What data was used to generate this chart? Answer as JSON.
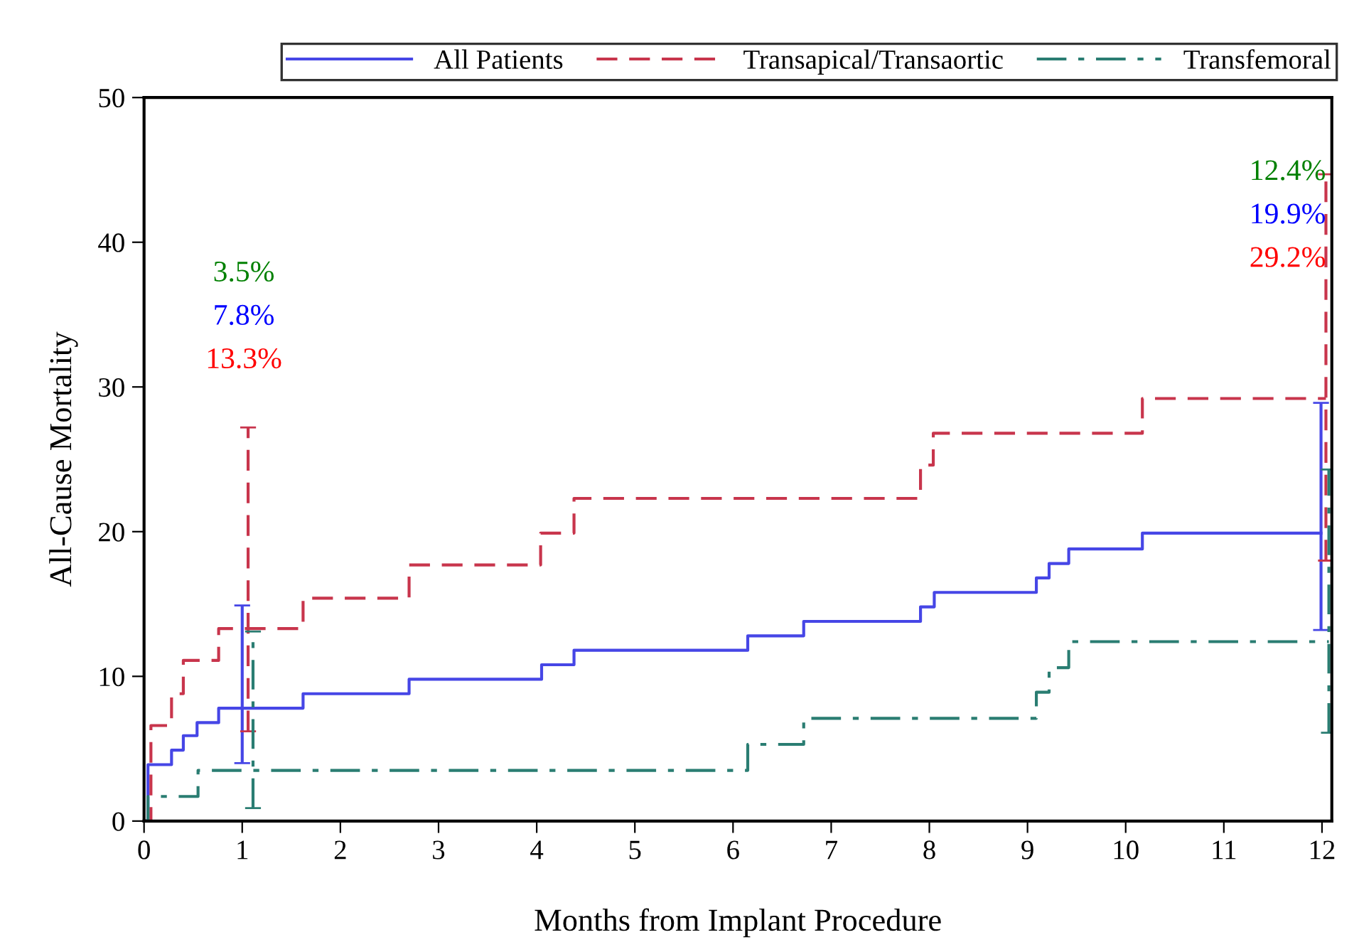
{
  "chart_data": {
    "type": "step",
    "xlabel": "Months from Implant Procedure",
    "ylabel": "All-Cause Mortality",
    "xlim": [
      0,
      12.1
    ],
    "xticks": [
      0,
      1,
      2,
      3,
      4,
      5,
      6,
      7,
      8,
      9,
      10,
      11,
      12
    ],
    "ylim": [
      0,
      50
    ],
    "yticks": [
      0,
      10,
      20,
      30,
      40,
      50
    ],
    "legend": "top",
    "grid": false,
    "annotations": [
      "3.5%",
      "7.8%",
      "13.3%",
      "12.4%",
      "19.9%",
      "29.2%"
    ],
    "series": [
      {
        "name": "All Patients",
        "color": "#4646e6",
        "line_style": "solid",
        "x": [
          0,
          0.04,
          0.28,
          0.4,
          0.54,
          0.76,
          1.0,
          1.62,
          2.7,
          4.05,
          4.38,
          6.15,
          6.72,
          7.91,
          8.05,
          9.09,
          9.22,
          9.42,
          10.17,
          11.99
        ],
        "values": [
          0,
          3.9,
          4.9,
          5.9,
          6.8,
          7.8,
          7.8,
          8.8,
          9.8,
          10.8,
          11.8,
          12.8,
          13.8,
          14.8,
          15.8,
          16.8,
          17.8,
          18.8,
          19.9,
          19.9
        ],
        "errors": [
          null,
          null,
          null,
          null,
          null,
          null,
          [
            4.0,
            14.9
          ],
          null,
          null,
          null,
          null,
          null,
          null,
          null,
          null,
          null,
          null,
          null,
          null,
          [
            13.2,
            28.9
          ]
        ]
      },
      {
        "name": "Transapical/Transaortic",
        "color": "#c8354c",
        "line_style": "dashed",
        "x": [
          0,
          0.07,
          0.28,
          0.4,
          0.76,
          1.06,
          1.62,
          2.7,
          4.04,
          4.38,
          7.91,
          8.04,
          10.17,
          12.04
        ],
        "values": [
          0,
          6.6,
          8.8,
          11.1,
          13.3,
          13.3,
          15.4,
          17.7,
          19.9,
          22.3,
          24.6,
          26.8,
          29.2,
          29.2
        ],
        "errors": [
          null,
          null,
          null,
          null,
          null,
          [
            6.2,
            27.2
          ],
          null,
          null,
          null,
          null,
          null,
          null,
          null,
          [
            18.0,
            44.7
          ]
        ]
      },
      {
        "name": "Transfemoral",
        "color": "#2a7d72",
        "line_style": "dashdot",
        "x": [
          0,
          0.04,
          0.55,
          1.11,
          6.15,
          6.72,
          9.09,
          9.22,
          9.42,
          12.07
        ],
        "values": [
          0,
          1.7,
          3.5,
          3.5,
          5.3,
          7.1,
          8.9,
          10.6,
          12.4,
          12.4
        ],
        "errors": [
          null,
          null,
          null,
          [
            0.9,
            13.1
          ],
          null,
          null,
          null,
          null,
          null,
          [
            6.1,
            24.3
          ]
        ]
      }
    ]
  }
}
